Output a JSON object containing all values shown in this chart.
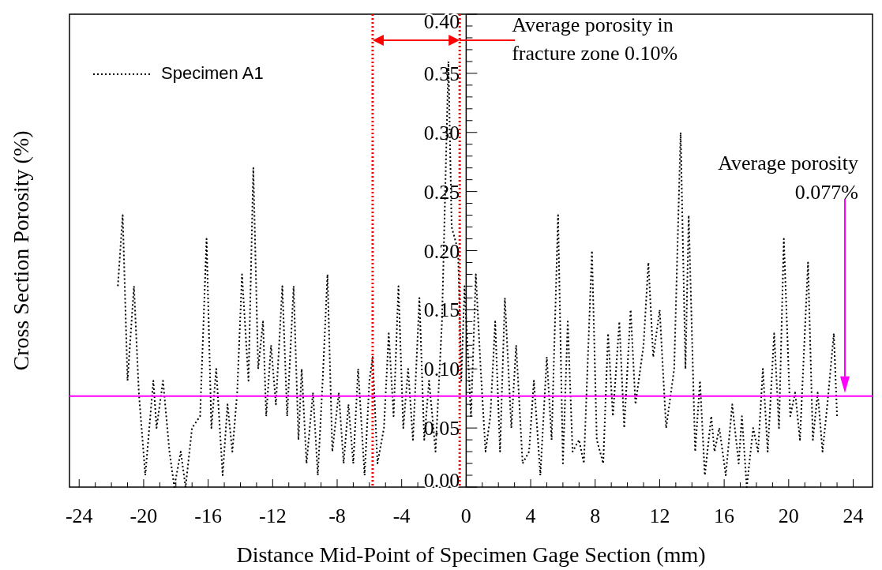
{
  "chart_data": {
    "type": "line",
    "xlabel": "Distance Mid-Point of Specimen Gage Section (mm)",
    "ylabel": "Cross Section Porosity (%)",
    "xlim": [
      -24.6,
      25.2
    ],
    "ylim": [
      0,
      0.4
    ],
    "xticks": [
      -24,
      {
        "value": -23,
        "label": null
      },
      {
        "value": -22,
        "label": null
      },
      {
        "value": -21,
        "label": null
      },
      -20,
      {
        "value": -19,
        "label": null
      },
      {
        "value": -18,
        "label": null
      },
      {
        "value": -17,
        "label": null
      },
      -16,
      {
        "value": -15,
        "label": null
      },
      {
        "value": -14,
        "label": null
      },
      {
        "value": -13,
        "label": null
      },
      -12,
      {
        "value": -11,
        "label": null
      },
      {
        "value": -10,
        "label": null
      },
      {
        "value": -9,
        "label": null
      },
      -8,
      {
        "value": -7,
        "label": null
      },
      {
        "value": -6,
        "label": null
      },
      {
        "value": -5,
        "label": null
      },
      -4,
      {
        "value": -3,
        "label": null
      },
      {
        "value": -2,
        "label": null
      },
      {
        "value": -1,
        "label": null
      },
      0,
      {
        "value": 1,
        "label": null
      },
      {
        "value": 2,
        "label": null
      },
      {
        "value": 3,
        "label": null
      },
      4,
      {
        "value": 5,
        "label": null
      },
      {
        "value": 6,
        "label": null
      },
      {
        "value": 7,
        "label": null
      },
      8,
      {
        "value": 9,
        "label": null
      },
      {
        "value": 10,
        "label": null
      },
      {
        "value": 11,
        "label": null
      },
      12,
      {
        "value": 13,
        "label": null
      },
      {
        "value": 14,
        "label": null
      },
      {
        "value": 15,
        "label": null
      },
      16,
      {
        "value": 17,
        "label": null
      },
      {
        "value": 18,
        "label": null
      },
      {
        "value": 19,
        "label": null
      },
      20,
      {
        "value": 21,
        "label": null
      },
      {
        "value": 22,
        "label": null
      },
      {
        "value": 23,
        "label": null
      },
      24
    ],
    "yticks": [
      {
        "value": 0,
        "label": "0.00"
      },
      {
        "value": 0.01,
        "label": null
      },
      {
        "value": 0.02,
        "label": null
      },
      {
        "value": 0.03,
        "label": null
      },
      {
        "value": 0.04,
        "label": null
      },
      {
        "value": 0.05,
        "label": "0.05"
      },
      {
        "value": 0.06,
        "label": null
      },
      {
        "value": 0.07,
        "label": null
      },
      {
        "value": 0.08,
        "label": null
      },
      {
        "value": 0.09,
        "label": null
      },
      {
        "value": 0.1,
        "label": "0.10"
      },
      {
        "value": 0.11,
        "label": null
      },
      {
        "value": 0.12,
        "label": null
      },
      {
        "value": 0.13,
        "label": null
      },
      {
        "value": 0.14,
        "label": null
      },
      {
        "value": 0.15,
        "label": "0.15"
      },
      {
        "value": 0.16,
        "label": null
      },
      {
        "value": 0.17,
        "label": null
      },
      {
        "value": 0.18,
        "label": null
      },
      {
        "value": 0.19,
        "label": null
      },
      {
        "value": 0.2,
        "label": "0.20"
      },
      {
        "value": 0.21,
        "label": null
      },
      {
        "value": 0.22,
        "label": null
      },
      {
        "value": 0.23,
        "label": null
      },
      {
        "value": 0.24,
        "label": null
      },
      {
        "value": 0.25,
        "label": "0.25"
      },
      {
        "value": 0.26,
        "label": null
      },
      {
        "value": 0.27,
        "label": null
      },
      {
        "value": 0.28,
        "label": null
      },
      {
        "value": 0.29,
        "label": null
      },
      {
        "value": 0.3,
        "label": "0.30"
      },
      {
        "value": 0.31,
        "label": null
      },
      {
        "value": 0.32,
        "label": null
      },
      {
        "value": 0.33,
        "label": null
      },
      {
        "value": 0.34,
        "label": null
      },
      {
        "value": 0.35,
        "label": "0.35"
      },
      {
        "value": 0.36,
        "label": null
      },
      {
        "value": 0.37,
        "label": null
      },
      {
        "value": 0.38,
        "label": null
      },
      {
        "value": 0.39,
        "label": null
      },
      {
        "value": 0.4,
        "label": "0.40"
      }
    ],
    "grid": false,
    "legend": "top left",
    "line_style": "dotted",
    "series": [
      {
        "name": "Specimen A1",
        "color": "#000000",
        "x": [
          -21.6,
          -21.3,
          -21.0,
          -20.6,
          -20.3,
          -19.9,
          -19.4,
          -19.2,
          -18.8,
          -18.4,
          -18.1,
          -17.7,
          -17.4,
          -17.0,
          -16.5,
          -16.1,
          -15.8,
          -15.5,
          -15.1,
          -14.8,
          -14.5,
          -14.2,
          -13.9,
          -13.5,
          -13.2,
          -12.9,
          -12.6,
          -12.4,
          -12.1,
          -11.8,
          -11.4,
          -11.1,
          -10.7,
          -10.4,
          -10.2,
          -9.9,
          -9.5,
          -9.2,
          -8.9,
          -8.6,
          -8.3,
          -7.9,
          -7.6,
          -7.3,
          -7.0,
          -6.7,
          -6.3,
          -6.0,
          -5.8,
          -5.5,
          -5.1,
          -4.8,
          -4.5,
          -4.2,
          -3.9,
          -3.6,
          -3.3,
          -2.9,
          -2.6,
          -2.3,
          -1.9,
          -1.5,
          -1.1,
          -0.9,
          -0.5,
          -0.3,
          -0.1,
          0.3,
          0.6,
          0.9,
          1.2,
          1.5,
          1.8,
          2.1,
          2.4,
          2.8,
          3.1,
          3.5,
          3.9,
          4.2,
          4.6,
          5.0,
          5.3,
          5.7,
          6.0,
          6.3,
          6.6,
          7.0,
          7.3,
          7.8,
          8.1,
          8.5,
          8.8,
          9.1,
          9.5,
          9.8,
          10.2,
          10.5,
          11.0,
          11.3,
          11.6,
          12.0,
          12.4,
          12.7,
          12.9,
          13.3,
          13.6,
          13.8,
          14.2,
          14.5,
          14.8,
          15.2,
          15.4,
          15.7,
          16.1,
          16.5,
          16.9,
          17.1,
          17.4,
          17.8,
          18.1,
          18.4,
          18.7,
          19.1,
          19.4,
          19.7,
          20.1,
          20.4,
          20.7,
          21.2,
          21.5,
          21.8,
          22.1,
          22.4,
          22.8,
          23.0
        ],
        "values": [
          0.17,
          0.23,
          0.09,
          0.17,
          0.08,
          0.01,
          0.09,
          0.05,
          0.09,
          0.03,
          0.0,
          0.03,
          0.0,
          0.05,
          0.06,
          0.21,
          0.05,
          0.1,
          0.01,
          0.07,
          0.03,
          0.08,
          0.18,
          0.09,
          0.27,
          0.1,
          0.14,
          0.06,
          0.12,
          0.07,
          0.17,
          0.06,
          0.17,
          0.04,
          0.1,
          0.02,
          0.08,
          0.01,
          0.09,
          0.18,
          0.03,
          0.08,
          0.02,
          0.07,
          0.02,
          0.1,
          0.01,
          0.09,
          0.11,
          0.02,
          0.05,
          0.13,
          0.06,
          0.17,
          0.05,
          0.1,
          0.04,
          0.16,
          0.04,
          0.09,
          0.03,
          0.14,
          0.36,
          0.22,
          0.2,
          0.09,
          0.17,
          0.06,
          0.18,
          0.1,
          0.03,
          0.06,
          0.14,
          0.03,
          0.16,
          0.05,
          0.12,
          0.02,
          0.03,
          0.09,
          0.01,
          0.11,
          0.04,
          0.23,
          0.02,
          0.14,
          0.03,
          0.04,
          0.02,
          0.2,
          0.04,
          0.02,
          0.13,
          0.06,
          0.14,
          0.05,
          0.15,
          0.07,
          0.12,
          0.19,
          0.11,
          0.15,
          0.05,
          0.08,
          0.1,
          0.3,
          0.1,
          0.23,
          0.03,
          0.09,
          0.01,
          0.06,
          0.03,
          0.05,
          0.01,
          0.07,
          0.02,
          0.06,
          0.0,
          0.05,
          0.03,
          0.1,
          0.03,
          0.13,
          0.05,
          0.21,
          0.06,
          0.08,
          0.04,
          0.19,
          0.04,
          0.08,
          0.03,
          0.07,
          0.13,
          0.06
        ]
      }
    ],
    "ref_lines": [
      {
        "axis": "y",
        "value": 0.077,
        "color": "#ff00ff",
        "line_style": "solid"
      },
      {
        "axis": "x",
        "value": -5.8,
        "color": "#ff0000",
        "line_style": "dotted"
      },
      {
        "axis": "x",
        "value": -0.4,
        "color": "#ff0000",
        "line_style": "dotted"
      }
    ],
    "annotations": [
      {
        "text": "Average porosity in fracture zone 0.10%",
        "x": -0.4,
        "y": 0.378
      },
      "Average porosity 0.077%"
    ]
  }
}
